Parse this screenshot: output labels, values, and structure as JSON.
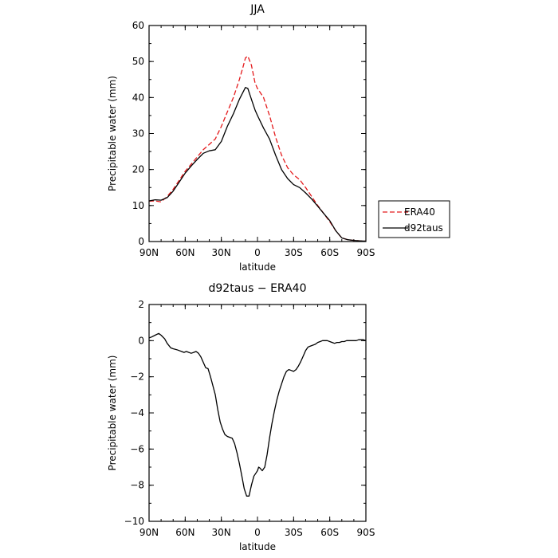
{
  "chart_data": [
    {
      "type": "line",
      "title": "JJA",
      "xlabel": "latitude",
      "ylabel": "Precipitable water (mm)",
      "xlim": [
        90,
        -90
      ],
      "ylim": [
        0,
        60
      ],
      "xticks": [
        90,
        60,
        30,
        0,
        -30,
        -60,
        -90
      ],
      "xtick_labels": [
        "90N",
        "60N",
        "30N",
        "0",
        "30S",
        "60S",
        "90S"
      ],
      "yticks": [
        0,
        10,
        20,
        30,
        40,
        50,
        60
      ],
      "ytick_labels": [
        "0",
        "10",
        "20",
        "30",
        "40",
        "50",
        "60"
      ],
      "legend_position": "right",
      "series": [
        {
          "name": "ERA40",
          "color": "#e41a1c",
          "dash": "dashed",
          "x": [
            90,
            85,
            80,
            75,
            70,
            65,
            60,
            55,
            50,
            45,
            40,
            35,
            30,
            25,
            20,
            15,
            12,
            10,
            8,
            5,
            2,
            0,
            -5,
            -10,
            -15,
            -20,
            -25,
            -30,
            -35,
            -40,
            -45,
            -50,
            -55,
            -60,
            -65,
            -70,
            -75,
            -80,
            -85,
            -90
          ],
          "y": [
            11.2,
            11.3,
            11.0,
            12.5,
            14.5,
            17.0,
            19.5,
            21.5,
            23.5,
            25.5,
            27.0,
            28.5,
            32.0,
            36.0,
            40.0,
            45.0,
            48.5,
            51.0,
            51.5,
            49.0,
            44.0,
            42.5,
            40.0,
            35.0,
            29.0,
            24.0,
            20.5,
            18.5,
            17.2,
            15.0,
            12.5,
            10.0,
            7.8,
            5.5,
            3.0,
            1.0,
            0.5,
            0.3,
            0.2,
            0.1
          ]
        },
        {
          "name": "d92taus",
          "color": "#000000",
          "dash": "solid",
          "x": [
            90,
            85,
            80,
            75,
            70,
            65,
            60,
            55,
            50,
            45,
            40,
            35,
            30,
            25,
            20,
            15,
            12,
            10,
            8,
            5,
            2,
            0,
            -5,
            -10,
            -15,
            -20,
            -25,
            -30,
            -35,
            -40,
            -45,
            -50,
            -55,
            -60,
            -65,
            -70,
            -75,
            -80,
            -85,
            -90
          ],
          "y": [
            11.3,
            11.6,
            11.5,
            12.2,
            14.0,
            16.5,
            19.0,
            21.0,
            22.8,
            24.5,
            25.2,
            25.5,
            27.8,
            32.0,
            35.5,
            39.5,
            41.5,
            42.8,
            42.5,
            39.5,
            36.5,
            35.0,
            31.5,
            28.5,
            24.0,
            20.0,
            17.5,
            15.8,
            15.0,
            13.5,
            11.8,
            9.8,
            7.8,
            5.8,
            3.0,
            1.0,
            0.5,
            0.3,
            0.2,
            0.1
          ]
        }
      ]
    },
    {
      "type": "line",
      "title": "d92taus − ERA40",
      "xlabel": "latitude",
      "ylabel": "Precipitable water (mm)",
      "xlim": [
        90,
        -90
      ],
      "ylim": [
        -10,
        2
      ],
      "xticks": [
        90,
        60,
        30,
        0,
        -30,
        -60,
        -90
      ],
      "xtick_labels": [
        "90N",
        "60N",
        "30N",
        "0",
        "30S",
        "60S",
        "90S"
      ],
      "yticks": [
        -10,
        -8,
        -6,
        -4,
        -2,
        0,
        2
      ],
      "ytick_labels": [
        "−10",
        "−8",
        "−6",
        "−4",
        "−2",
        "0",
        "2"
      ],
      "series": [
        {
          "color": "#000000",
          "dash": "solid",
          "x": [
            90,
            88,
            85,
            82,
            80,
            77,
            75,
            72,
            70,
            67,
            65,
            63,
            61,
            59,
            57,
            55,
            53,
            51,
            49,
            47,
            45,
            43,
            41,
            39,
            37,
            35,
            33,
            31,
            29,
            27,
            25,
            23,
            21,
            19,
            17,
            15,
            13,
            11,
            9,
            7,
            5,
            3,
            1,
            0,
            -1,
            -2,
            -4,
            -6,
            -8,
            -10,
            -12,
            -14,
            -16,
            -18,
            -20,
            -22,
            -24,
            -26,
            -28,
            -30,
            -32,
            -34,
            -36,
            -38,
            -40,
            -42,
            -44,
            -46,
            -48,
            -50,
            -52,
            -54,
            -56,
            -58,
            -60,
            -62,
            -64,
            -66,
            -68,
            -70,
            -72,
            -74,
            -76,
            -78,
            -80,
            -82,
            -84,
            -86,
            -88,
            -90
          ],
          "y": [
            0.15,
            0.2,
            0.3,
            0.4,
            0.3,
            0.1,
            -0.15,
            -0.4,
            -0.45,
            -0.5,
            -0.55,
            -0.6,
            -0.65,
            -0.6,
            -0.65,
            -0.7,
            -0.65,
            -0.6,
            -0.7,
            -0.9,
            -1.2,
            -1.5,
            -1.55,
            -2.0,
            -2.5,
            -3.0,
            -3.8,
            -4.5,
            -4.9,
            -5.2,
            -5.3,
            -5.35,
            -5.4,
            -5.7,
            -6.2,
            -6.8,
            -7.5,
            -8.2,
            -8.6,
            -8.6,
            -8.0,
            -7.5,
            -7.3,
            -7.2,
            -7.0,
            -7.05,
            -7.2,
            -7.0,
            -6.3,
            -5.4,
            -4.6,
            -3.9,
            -3.3,
            -2.8,
            -2.4,
            -2.0,
            -1.7,
            -1.6,
            -1.65,
            -1.7,
            -1.6,
            -1.4,
            -1.15,
            -0.85,
            -0.55,
            -0.35,
            -0.3,
            -0.25,
            -0.2,
            -0.1,
            -0.05,
            0.0,
            0.0,
            0.0,
            -0.05,
            -0.1,
            -0.15,
            -0.1,
            -0.1,
            -0.05,
            -0.05,
            0.0,
            0.0,
            0.0,
            0.0,
            0.0,
            0.05,
            0.05,
            0.05,
            0.0
          ]
        }
      ]
    }
  ]
}
